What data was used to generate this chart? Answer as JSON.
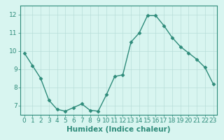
{
  "x": [
    0,
    1,
    2,
    3,
    4,
    5,
    6,
    7,
    8,
    9,
    10,
    11,
    12,
    13,
    14,
    15,
    16,
    17,
    18,
    19,
    20,
    21,
    22,
    23
  ],
  "y": [
    9.9,
    9.2,
    8.5,
    7.3,
    6.8,
    6.7,
    6.9,
    7.1,
    6.75,
    6.7,
    7.6,
    8.6,
    8.7,
    10.5,
    11.0,
    11.95,
    11.95,
    11.4,
    10.75,
    10.25,
    9.9,
    9.55,
    9.1,
    8.2
  ],
  "line_color": "#2e8b7a",
  "marker": "D",
  "marker_color": "#2e8b7a",
  "bg_color": "#d8f5f0",
  "grid_color": "#b8ddd8",
  "xlabel": "Humidex (Indice chaleur)",
  "xlim": [
    -0.5,
    23.5
  ],
  "ylim": [
    6.5,
    12.5
  ],
  "yticks": [
    7,
    8,
    9,
    10,
    11,
    12
  ],
  "xticks": [
    0,
    1,
    2,
    3,
    4,
    5,
    6,
    7,
    8,
    9,
    10,
    11,
    12,
    13,
    14,
    15,
    16,
    17,
    18,
    19,
    20,
    21,
    22,
    23
  ],
  "xlabel_fontsize": 7.5,
  "tick_fontsize": 6.5,
  "tick_color": "#2e8b7a",
  "spine_color": "#2e8b7a",
  "linewidth": 1.0,
  "markersize": 2.5
}
